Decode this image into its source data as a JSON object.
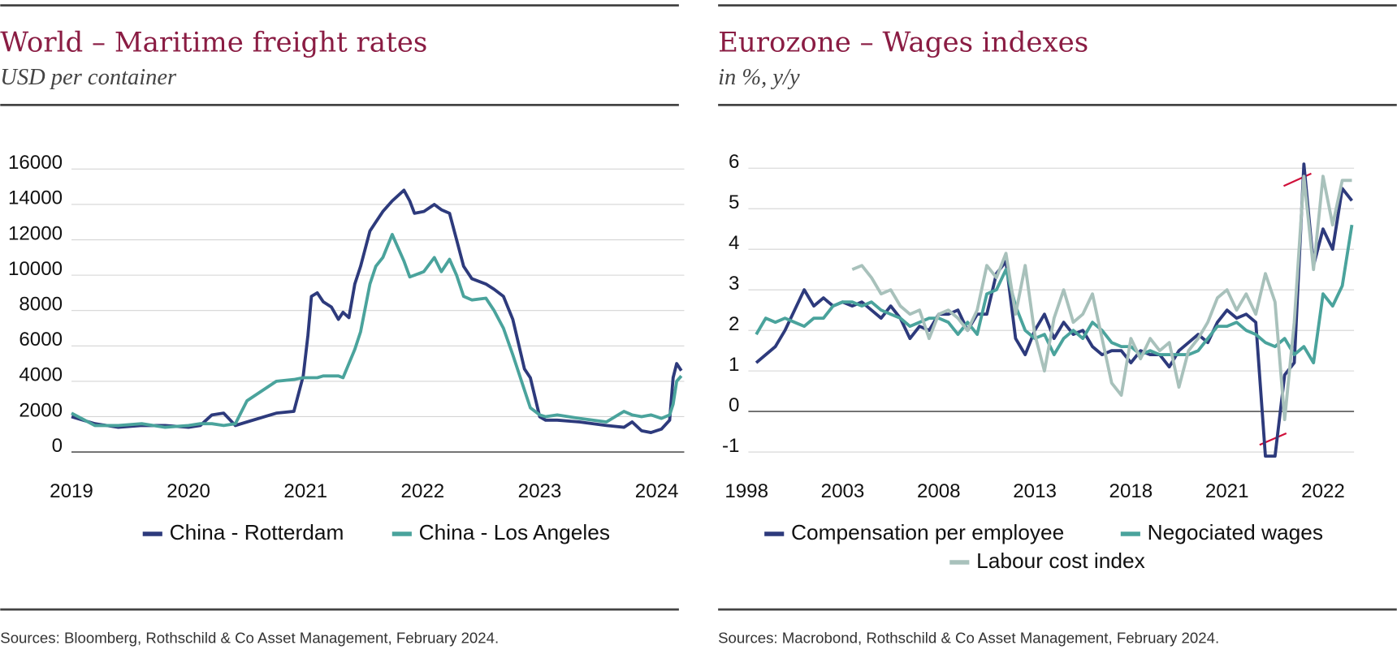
{
  "chart_data": [
    {
      "type": "line",
      "title": "World – Maritime freight rates",
      "subtitle": "USD per container",
      "source": "Sources: Bloomberg, Rothschild & Co Asset Management, February 2024.",
      "xlim": [
        2019,
        2024.25
      ],
      "xticks": [
        2019,
        2020,
        2021,
        2022,
        2023,
        2024
      ],
      "ylim": [
        0,
        16000
      ],
      "yticks": [
        0,
        2000,
        4000,
        6000,
        8000,
        10000,
        12000,
        14000,
        16000
      ],
      "grid": true,
      "x": [
        2019.0,
        2019.2,
        2019.4,
        2019.6,
        2019.8,
        2020.0,
        2020.1,
        2020.2,
        2020.3,
        2020.4,
        2020.5,
        2020.75,
        2020.9,
        2020.98,
        2021.02,
        2021.05,
        2021.1,
        2021.15,
        2021.22,
        2021.28,
        2021.32,
        2021.37,
        2021.42,
        2021.47,
        2021.55,
        2021.6,
        2021.66,
        2021.74,
        2021.84,
        2021.89,
        2021.93,
        2022.01,
        2022.1,
        2022.16,
        2022.23,
        2022.29,
        2022.35,
        2022.42,
        2022.54,
        2022.61,
        2022.69,
        2022.77,
        2022.87,
        2022.92,
        2023.0,
        2023.05,
        2023.15,
        2023.34,
        2023.57,
        2023.72,
        2023.79,
        2023.87,
        2023.95,
        2024.04,
        2024.11,
        2024.14,
        2024.17,
        2024.21
      ],
      "series": [
        {
          "name": "China - Rotterdam",
          "color": "#2d3a7c",
          "values": [
            2000,
            1600,
            1400,
            1500,
            1500,
            1400,
            1500,
            2100,
            2200,
            1500,
            1700,
            2200,
            2300,
            4300,
            6600,
            8800,
            9000,
            8500,
            8200,
            7500,
            7900,
            7600,
            9500,
            10500,
            12500,
            13000,
            13600,
            14200,
            14800,
            14200,
            13500,
            13600,
            14000,
            13700,
            13500,
            12000,
            10500,
            9800,
            9500,
            9200,
            8800,
            7500,
            4700,
            4200,
            2000,
            1800,
            1800,
            1700,
            1500,
            1400,
            1700,
            1200,
            1100,
            1300,
            1800,
            4200,
            5000,
            4600
          ]
        },
        {
          "name": "China - Los Angeles",
          "color": "#4aa39c",
          "values": [
            2200,
            1500,
            1500,
            1600,
            1400,
            1500,
            1600,
            1600,
            1500,
            1600,
            2900,
            4000,
            4100,
            4200,
            4200,
            4200,
            4200,
            4300,
            4300,
            4300,
            4200,
            5000,
            5800,
            6800,
            9500,
            10500,
            11000,
            12300,
            10800,
            9900,
            10000,
            10200,
            11000,
            10200,
            10900,
            10000,
            8800,
            8600,
            8700,
            8000,
            7000,
            5500,
            3500,
            2500,
            2100,
            2000,
            2100,
            1900,
            1700,
            2300,
            2100,
            2000,
            2100,
            1900,
            2100,
            2700,
            4000,
            4300
          ]
        }
      ]
    },
    {
      "type": "line",
      "title": "Eurozone – Wages indexes",
      "subtitle": "in %, y/y",
      "source": "Sources: Macrobond, Rothschild & Co Asset Management, February 2024.",
      "xlim": [
        -0.25,
        6.35
      ],
      "xticks": [
        {
          "value": 0,
          "label": "1998"
        },
        {
          "value": 1,
          "label": "2003"
        },
        {
          "value": 2,
          "label": "2008"
        },
        {
          "value": 3,
          "label": "2013"
        },
        {
          "value": 4,
          "label": "2018"
        },
        {
          "value": 5,
          "label": "2021"
        },
        {
          "value": 6,
          "label": "2022"
        }
      ],
      "ylim": [
        -1,
        6
      ],
      "yticks": [
        -1,
        0,
        1,
        2,
        3,
        4,
        5,
        6
      ],
      "grid": true,
      "x": [
        0.1,
        0.2,
        0.3,
        0.4,
        0.5,
        0.6,
        0.7,
        0.8,
        0.9,
        1.0,
        1.1,
        1.2,
        1.3,
        1.4,
        1.5,
        1.6,
        1.7,
        1.8,
        1.9,
        2.0,
        2.1,
        2.2,
        2.3,
        2.4,
        2.5,
        2.6,
        2.7,
        2.8,
        2.9,
        3.0,
        3.1,
        3.2,
        3.3,
        3.4,
        3.5,
        3.6,
        3.7,
        3.8,
        3.9,
        4.0,
        4.1,
        4.2,
        4.3,
        4.4,
        4.5,
        4.6,
        4.7,
        4.8,
        4.9,
        5.0,
        5.1,
        5.2,
        5.3,
        5.4,
        5.5,
        5.6,
        5.7,
        5.8,
        5.9,
        6.0,
        6.1,
        6.2,
        6.3
      ],
      "series": [
        {
          "name": "Compensation per employee",
          "color": "#2d3a7c",
          "values": [
            1.2,
            1.4,
            1.6,
            2.0,
            2.5,
            3.0,
            2.6,
            2.8,
            2.6,
            2.7,
            2.6,
            2.7,
            2.5,
            2.3,
            2.6,
            2.3,
            1.8,
            2.1,
            2.0,
            2.4,
            2.4,
            2.5,
            2.0,
            2.4,
            2.4,
            3.4,
            3.7,
            1.8,
            1.4,
            2.0,
            2.4,
            1.8,
            2.2,
            1.9,
            2.0,
            1.6,
            1.4,
            1.5,
            1.5,
            1.2,
            1.5,
            1.4,
            1.4,
            1.1,
            1.5,
            1.7,
            1.9,
            1.7,
            2.2,
            2.5,
            2.3,
            2.4,
            2.2,
            -1.1,
            -1.1,
            0.9,
            1.2,
            6.1,
            3.6,
            4.5,
            4.0,
            5.5,
            5.2
          ]
        },
        {
          "name": "Negociated wages",
          "color": "#4aa39c",
          "values": [
            1.9,
            2.3,
            2.2,
            2.3,
            2.2,
            2.1,
            2.3,
            2.3,
            2.6,
            2.7,
            2.7,
            2.6,
            2.7,
            2.5,
            2.4,
            2.3,
            2.1,
            2.2,
            2.3,
            2.3,
            2.2,
            1.9,
            2.2,
            1.9,
            2.9,
            3.0,
            3.5,
            2.6,
            2.0,
            1.8,
            1.9,
            1.4,
            1.8,
            2.0,
            1.8,
            2.2,
            2.0,
            1.7,
            1.6,
            1.6,
            1.4,
            1.5,
            1.4,
            1.4,
            1.4,
            1.4,
            1.5,
            1.8,
            2.1,
            2.1,
            2.2,
            2.0,
            1.9,
            1.7,
            1.6,
            1.8,
            1.4,
            1.6,
            1.2,
            2.9,
            2.6,
            3.1,
            4.6
          ]
        },
        {
          "name": "Labour cost index",
          "color": "#a8c1bb",
          "values": [
            null,
            null,
            null,
            null,
            null,
            null,
            null,
            null,
            null,
            null,
            3.5,
            3.6,
            3.3,
            2.9,
            3.0,
            2.6,
            2.4,
            2.5,
            1.8,
            2.4,
            2.5,
            2.3,
            2.0,
            2.5,
            3.6,
            3.3,
            3.9,
            2.4,
            3.6,
            1.9,
            1.0,
            2.3,
            3.0,
            2.2,
            2.4,
            2.9,
            1.8,
            0.7,
            0.4,
            1.8,
            1.3,
            1.8,
            1.5,
            1.7,
            0.6,
            1.5,
            1.8,
            2.2,
            2.8,
            3.0,
            2.5,
            2.9,
            2.4,
            3.4,
            2.7,
            -0.2,
            2.2,
            5.8,
            3.5,
            5.8,
            4.6,
            5.7,
            5.7
          ]
        }
      ]
    }
  ]
}
